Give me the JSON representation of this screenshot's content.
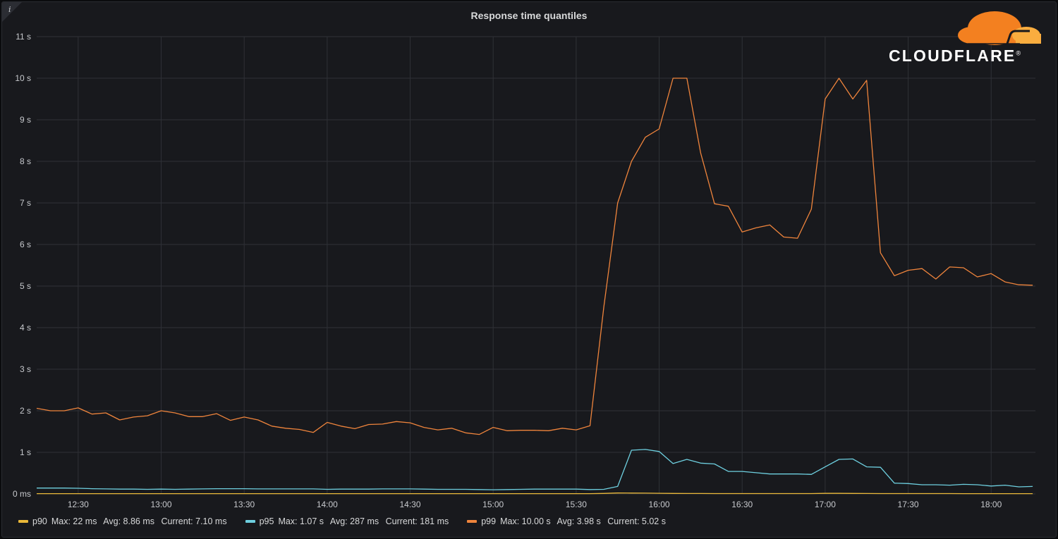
{
  "panel": {
    "title": "Response time quantiles",
    "info_icon": "i"
  },
  "logo": {
    "text": "CLOUDFLARE",
    "registered": "®",
    "icon": "cloud-icon",
    "colors": [
      "#f38020",
      "#faad3f"
    ]
  },
  "legend": [
    {
      "name": "p90",
      "color": "#eab839",
      "max": "Max: 22 ms",
      "avg": "Avg: 8.86 ms",
      "current": "Current: 7.10 ms"
    },
    {
      "name": "p95",
      "color": "#6ed0e0",
      "max": "Max: 1.07 s",
      "avg": "Avg: 287 ms",
      "current": "Current: 181 ms"
    },
    {
      "name": "p99",
      "color": "#ef843c",
      "max": "Max: 10.00 s",
      "avg": "Avg: 3.98 s",
      "current": "Current: 5.02 s"
    }
  ],
  "chart_data": {
    "type": "line",
    "title": "Response time quantiles",
    "grid": true,
    "legend_position": "bottom",
    "y_ticks": [
      "0 ms",
      "1 s",
      "2 s",
      "3 s",
      "4 s",
      "5 s",
      "6 s",
      "7 s",
      "8 s",
      "9 s",
      "10 s",
      "11 s"
    ],
    "ylim": [
      0,
      11
    ],
    "y_unit": "s",
    "x_ticks": [
      "12:30",
      "13:00",
      "13:30",
      "14:00",
      "14:30",
      "15:00",
      "15:30",
      "16:00",
      "16:30",
      "17:00",
      "17:30",
      "18:00"
    ],
    "x_range": [
      "12:15",
      "18:16"
    ],
    "x": [
      "12:15",
      "12:20",
      "12:25",
      "12:30",
      "12:35",
      "12:40",
      "12:45",
      "12:50",
      "12:55",
      "13:00",
      "13:05",
      "13:10",
      "13:15",
      "13:20",
      "13:25",
      "13:30",
      "13:35",
      "13:40",
      "13:45",
      "13:50",
      "13:55",
      "14:00",
      "14:05",
      "14:10",
      "14:15",
      "14:20",
      "14:25",
      "14:30",
      "14:35",
      "14:40",
      "14:45",
      "14:50",
      "14:55",
      "15:00",
      "15:05",
      "15:10",
      "15:15",
      "15:20",
      "15:25",
      "15:30",
      "15:35",
      "15:40",
      "15:45",
      "15:50",
      "15:55",
      "16:00",
      "16:05",
      "16:10",
      "16:15",
      "16:20",
      "16:25",
      "16:30",
      "16:35",
      "16:40",
      "16:45",
      "16:50",
      "16:55",
      "17:00",
      "17:05",
      "17:10",
      "17:15",
      "17:20",
      "17:25",
      "17:30",
      "17:35",
      "17:40",
      "17:45",
      "17:50",
      "17:55",
      "18:00",
      "18:05",
      "18:10",
      "18:15"
    ],
    "series": [
      {
        "name": "p90",
        "color": "#eab839",
        "values": [
          0.007,
          0.007,
          0.007,
          0.007,
          0.007,
          0.007,
          0.007,
          0.007,
          0.007,
          0.007,
          0.007,
          0.007,
          0.007,
          0.007,
          0.007,
          0.007,
          0.007,
          0.007,
          0.007,
          0.007,
          0.007,
          0.007,
          0.007,
          0.007,
          0.007,
          0.007,
          0.007,
          0.007,
          0.007,
          0.007,
          0.007,
          0.007,
          0.007,
          0.007,
          0.007,
          0.007,
          0.007,
          0.007,
          0.007,
          0.007,
          0.007,
          0.012,
          0.022,
          0.02,
          0.018,
          0.015,
          0.012,
          0.011,
          0.01,
          0.009,
          0.009,
          0.009,
          0.009,
          0.008,
          0.008,
          0.008,
          0.008,
          0.013,
          0.014,
          0.012,
          0.01,
          0.008,
          0.008,
          0.008,
          0.008,
          0.008,
          0.008,
          0.007,
          0.007,
          0.007,
          0.007,
          0.007,
          0.007
        ]
      },
      {
        "name": "p95",
        "color": "#6ed0e0",
        "values": [
          0.14,
          0.14,
          0.14,
          0.135,
          0.125,
          0.12,
          0.115,
          0.115,
          0.11,
          0.115,
          0.11,
          0.115,
          0.12,
          0.125,
          0.125,
          0.125,
          0.12,
          0.12,
          0.12,
          0.12,
          0.12,
          0.11,
          0.115,
          0.115,
          0.115,
          0.12,
          0.12,
          0.12,
          0.115,
          0.11,
          0.11,
          0.11,
          0.105,
          0.1,
          0.105,
          0.11,
          0.115,
          0.115,
          0.115,
          0.115,
          0.105,
          0.11,
          0.18,
          1.05,
          1.07,
          1.02,
          0.73,
          0.83,
          0.74,
          0.72,
          0.54,
          0.54,
          0.51,
          0.48,
          0.48,
          0.48,
          0.47,
          0.65,
          0.83,
          0.84,
          0.65,
          0.64,
          0.26,
          0.25,
          0.22,
          0.22,
          0.21,
          0.23,
          0.22,
          0.19,
          0.21,
          0.17,
          0.18
        ]
      },
      {
        "name": "p99",
        "color": "#ef843c",
        "values": [
          2.06,
          2.0,
          2.0,
          2.07,
          1.92,
          1.95,
          1.78,
          1.85,
          1.88,
          2.0,
          1.95,
          1.86,
          1.86,
          1.93,
          1.77,
          1.85,
          1.78,
          1.63,
          1.58,
          1.55,
          1.48,
          1.72,
          1.63,
          1.57,
          1.67,
          1.68,
          1.74,
          1.71,
          1.6,
          1.54,
          1.58,
          1.47,
          1.43,
          1.6,
          1.52,
          1.53,
          1.53,
          1.52,
          1.58,
          1.54,
          1.64,
          4.5,
          7.0,
          8.0,
          8.58,
          8.78,
          10.0,
          10.0,
          8.2,
          6.98,
          6.92,
          6.3,
          6.4,
          6.47,
          6.18,
          6.15,
          6.85,
          9.5,
          10.0,
          9.5,
          9.95,
          5.8,
          5.25,
          5.38,
          5.42,
          5.17,
          5.46,
          5.44,
          5.22,
          5.3,
          5.1,
          5.03,
          5.02
        ]
      }
    ]
  }
}
